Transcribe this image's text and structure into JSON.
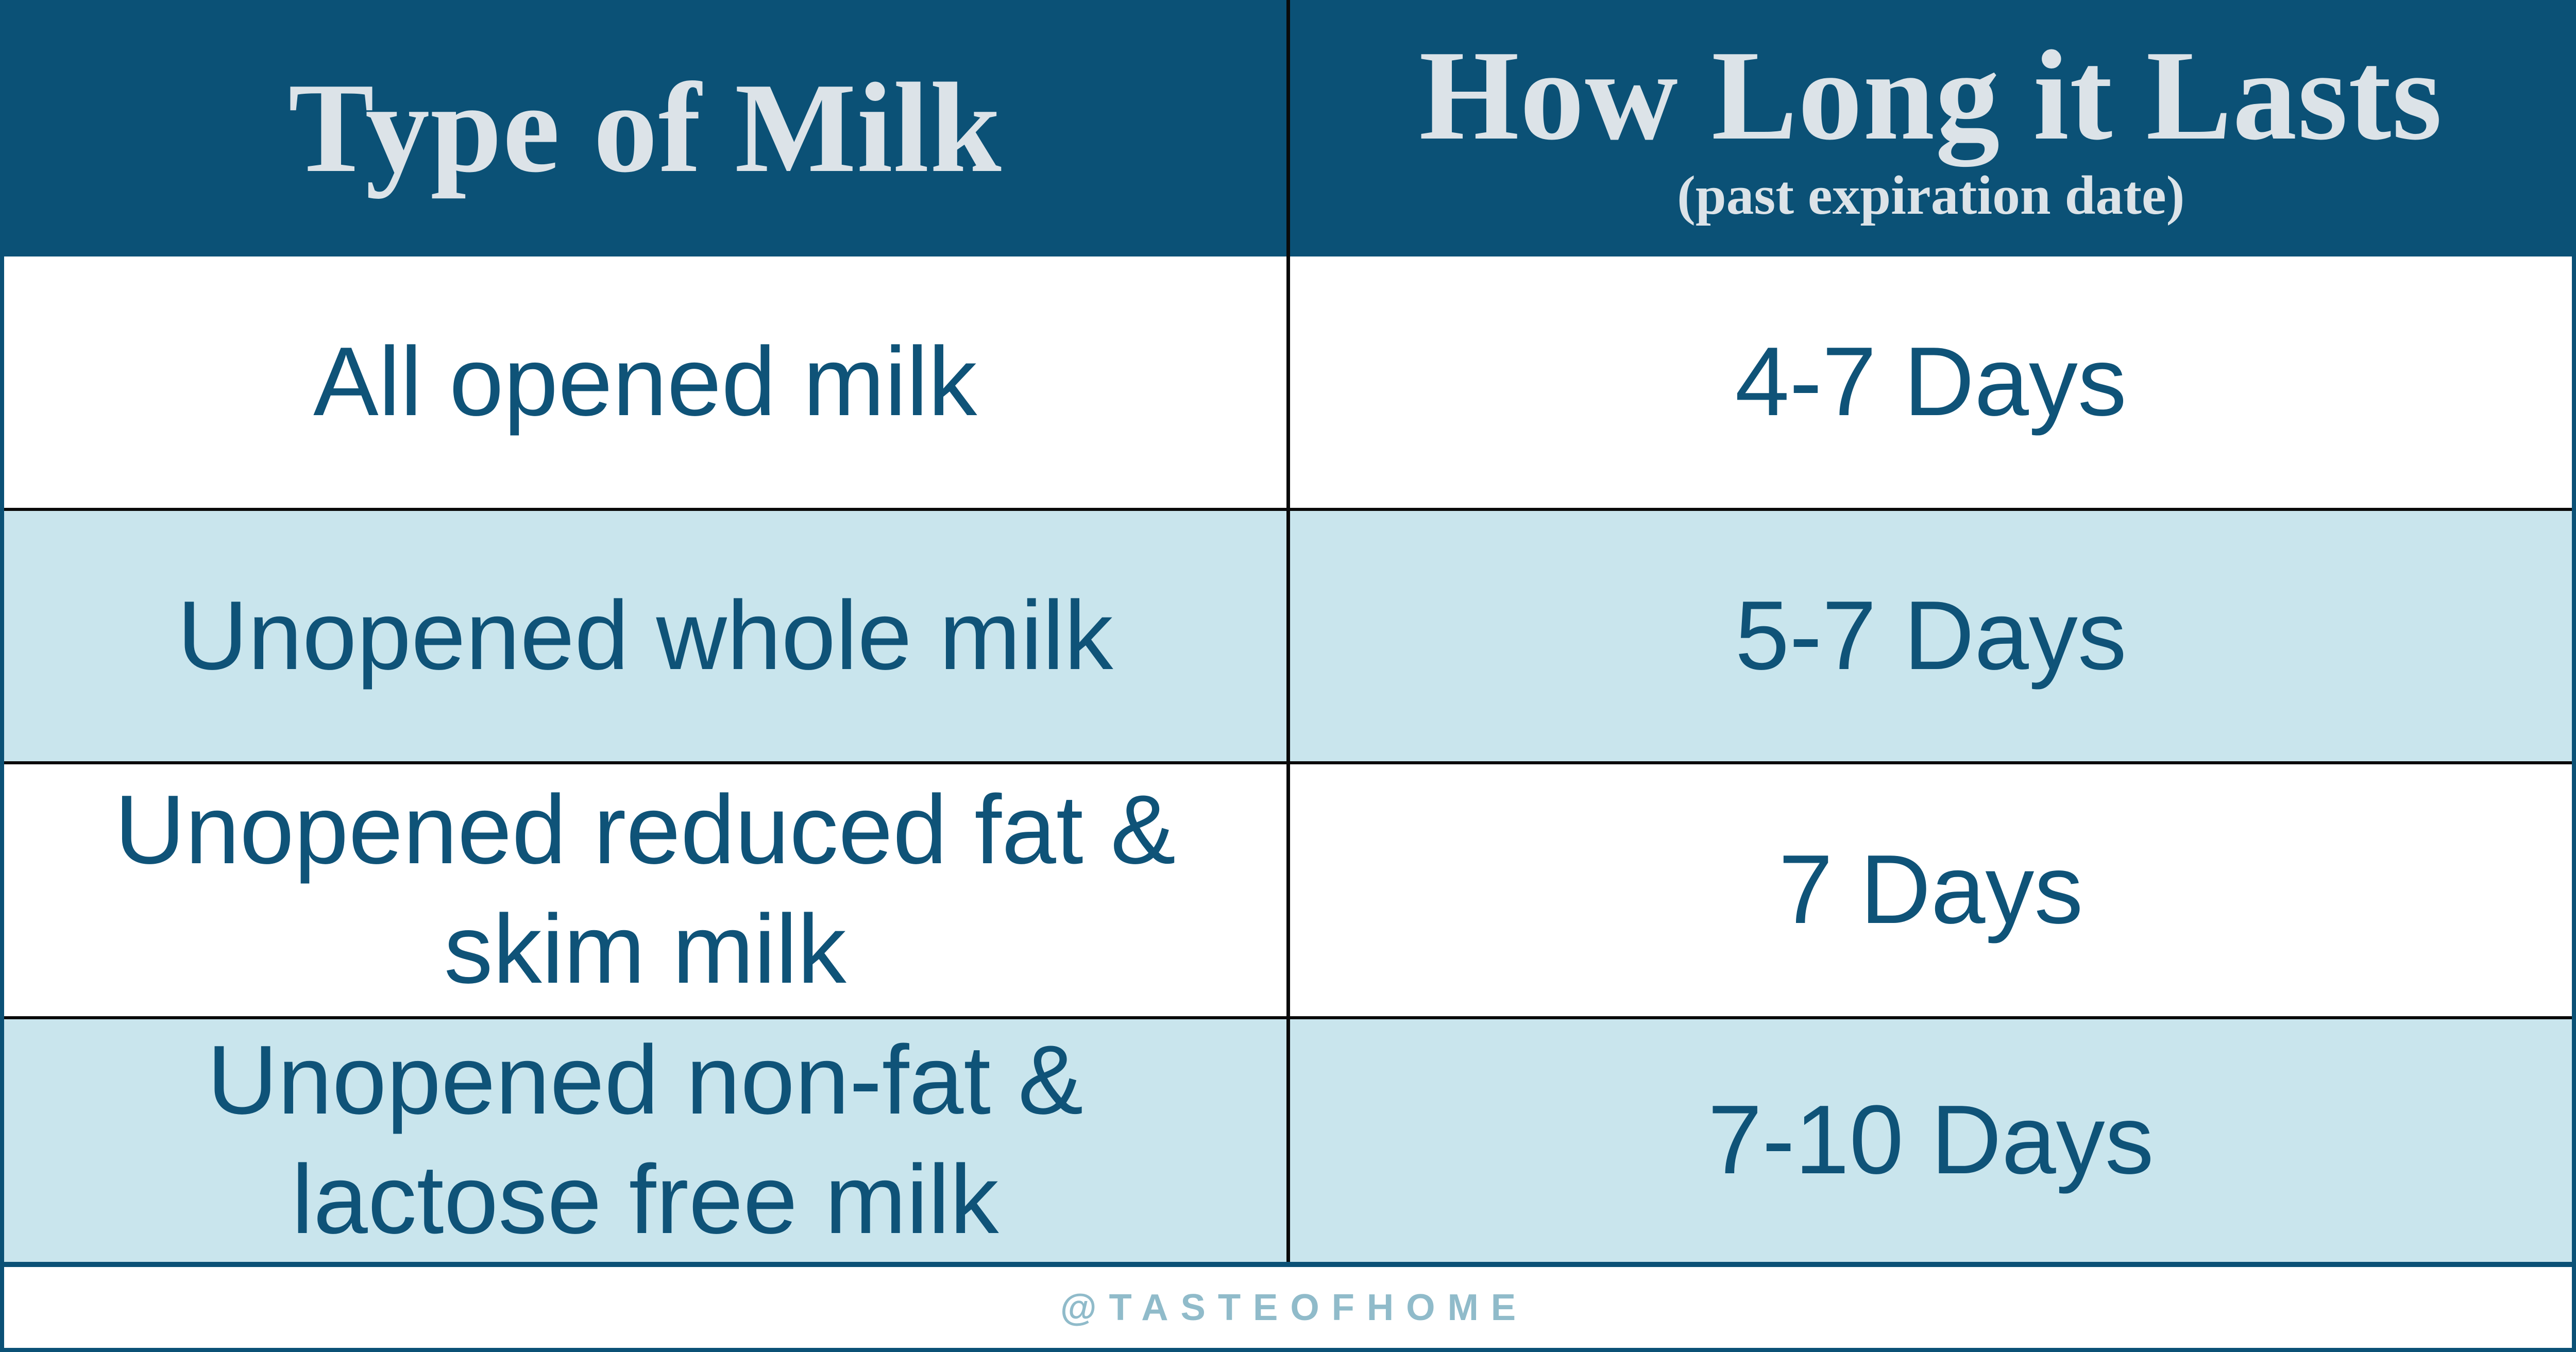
{
  "header": {
    "col1": {
      "title": "Type of Milk"
    },
    "col2": {
      "title": "How Long it Lasts",
      "subtitle": "(past expiration date)"
    }
  },
  "rows": [
    {
      "milk_type": "All opened milk",
      "duration": "4-7 Days"
    },
    {
      "milk_type": "Unopened whole milk",
      "duration": "5-7 Days"
    },
    {
      "milk_type": "Unopened reduced fat & skim milk",
      "duration": "7 Days"
    },
    {
      "milk_type": "Unopened non-fat & lactose free milk",
      "duration": "7-10 Days"
    }
  ],
  "footer": {
    "credit": "@TASTEOFHOME"
  },
  "colors": {
    "header_bg": "#0b5176",
    "header_text": "#dce3e8",
    "row_white_bg": "#ffffff",
    "row_alt_bg": "#c9e5ed",
    "body_text": "#0f5378",
    "grid_line_black": "#0a0a0a",
    "frame_blue": "#0b5176",
    "footer_text": "#90bbca"
  },
  "chart_data": {
    "type": "table",
    "title": "Type of Milk vs How Long it Lasts (past expiration date)",
    "columns": [
      "Type of Milk",
      "How Long it Lasts (past expiration date)"
    ],
    "rows": [
      [
        "All opened milk",
        "4-7 Days"
      ],
      [
        "Unopened whole milk",
        "5-7 Days"
      ],
      [
        "Unopened reduced fat & skim milk",
        "7 Days"
      ],
      [
        "Unopened non-fat & lactose free milk",
        "7-10 Days"
      ]
    ],
    "layout": {
      "grid": "black row separators, black column divider, dark-blue outer frame",
      "legend": "none"
    }
  }
}
